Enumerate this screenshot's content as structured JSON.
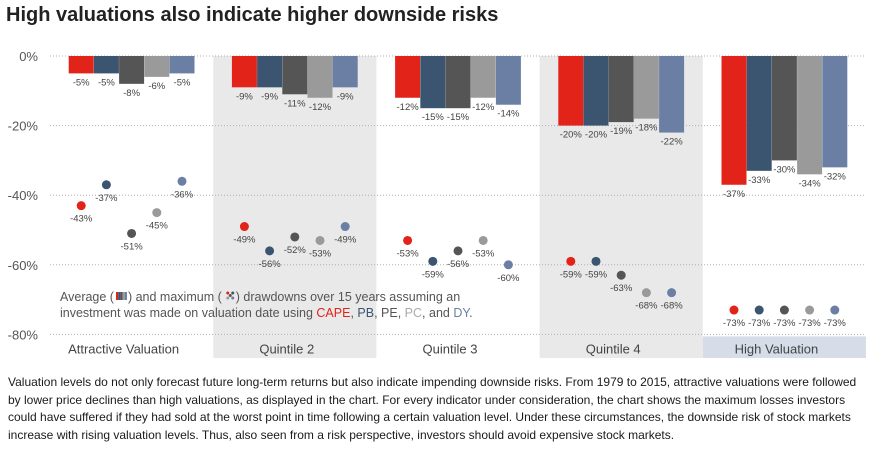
{
  "title": "High valuations also indicate higher downside risks",
  "caption": "Valuation levels do not only forecast future long-term returns but also indicate impending downside risks. From 1979 to 2015, attractive valuations were followed by lower price declines than high valuations, as displayed in the chart. For every indicator under consideration, the chart shows the maximum losses investors could have suffered if they had sold at the worst point in time following a certain valuation level. Under these circumstances, the downside risk of stock markets increase with rising valuation levels. Thus, also seen from a risk perspective, investors should avoid expensive stock markets.",
  "note": {
    "line1_a": "Average (",
    "line1_b": ") and maximum (",
    "line1_c": ") drawdowns over 15 years assuming an",
    "line2_a": "investment was made on valuation date using ",
    "cape": "CAPE",
    "sep1": ", ",
    "pb": "PB",
    "sep2": ", PE, ",
    "pc": "PC",
    "sep3": ", and ",
    "dy": "DY",
    "end": "."
  },
  "colors": {
    "CAPE": "#e2231a",
    "PB": "#3b5470",
    "PE": "#555555",
    "PC": "#9a9a9a",
    "DY": "#6a7fa3",
    "band": "#e9e9e9",
    "grid": "#b0b0b0"
  },
  "chart_data": {
    "type": "bar",
    "categories": [
      "Attractive Valuation",
      "Quintile 2",
      "Quintile 3",
      "Quintile 4",
      "High Valuation"
    ],
    "ylim": [
      -80,
      0
    ],
    "yticks": [
      "0%",
      "-20%",
      "-40%",
      "-60%",
      "-80%"
    ],
    "series": [
      {
        "name": "CAPE",
        "average": [
          -5,
          -9,
          -12,
          -20,
          -37
        ],
        "maximum": [
          -43,
          -49,
          -53,
          -59,
          -73
        ]
      },
      {
        "name": "PB",
        "average": [
          -5,
          -9,
          -15,
          -20,
          -33
        ],
        "maximum": [
          -37,
          -56,
          -59,
          -59,
          -73
        ]
      },
      {
        "name": "PE",
        "average": [
          -8,
          -11,
          -15,
          -19,
          -30
        ],
        "maximum": [
          -51,
          -52,
          -56,
          -63,
          -73
        ]
      },
      {
        "name": "PC",
        "average": [
          -6,
          -12,
          -12,
          -18,
          -34
        ],
        "maximum": [
          -45,
          -53,
          -53,
          -68,
          -73
        ]
      },
      {
        "name": "DY",
        "average": [
          -5,
          -9,
          -14,
          -22,
          -32
        ],
        "maximum": [
          -36,
          -49,
          -60,
          -68,
          -73
        ]
      }
    ],
    "avg_labels": [
      [
        "-5%",
        "-9%",
        "-12%",
        "-20%",
        "-37%"
      ],
      [
        "-5%",
        "-9%",
        "-15%",
        "-20%",
        "-33%"
      ],
      [
        "-8%",
        "-11%",
        "-15%",
        "-19%",
        "-30%"
      ],
      [
        "-6%",
        "-12%",
        "-12%",
        "-18%",
        "-34%"
      ],
      [
        "-5%",
        "-9%",
        "-14%",
        "-22%",
        "-32%"
      ]
    ],
    "max_labels": [
      [
        "-43%",
        "-49%",
        "-53%",
        "-59%",
        "-73%"
      ],
      [
        "-37%",
        "-56%",
        "-59%",
        "-59%",
        "-73%"
      ],
      [
        "-51%",
        "-52%",
        "-56%",
        "-63%",
        "-73%"
      ],
      [
        "-45%",
        "-53%",
        "-53%",
        "-68%",
        "-73%"
      ],
      [
        "-36%",
        "-49%",
        "-60%",
        "-68%",
        "-73%"
      ]
    ],
    "grid": true
  }
}
